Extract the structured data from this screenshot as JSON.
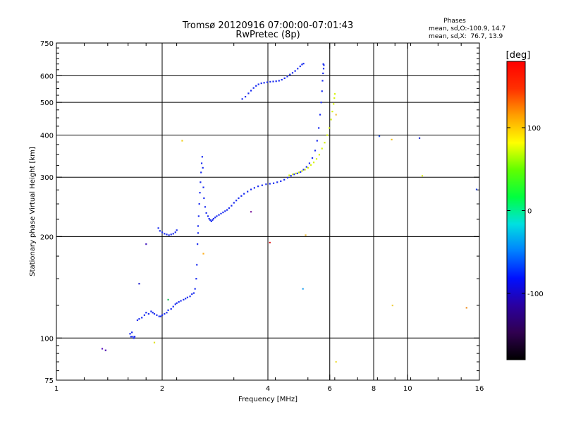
{
  "chart_data": {
    "type": "scatter",
    "title": "Tromsø 20120916 07:00:00-07:01:43",
    "subtitle": "RwPretec (8p)",
    "xlabel": "Frequency [MHz]",
    "ylabel": "Stationary phase Virtual Height [km]",
    "x_scale": "log",
    "y_scale": "log",
    "xlim": [
      1,
      16
    ],
    "ylim": [
      75,
      750
    ],
    "x_ticks": [
      1,
      2,
      4,
      6,
      8,
      10,
      16
    ],
    "x_tick_labels": [
      "1",
      "2",
      "4",
      "6",
      "8",
      "10",
      "16"
    ],
    "y_ticks": [
      75,
      100,
      200,
      300,
      400,
      500,
      600,
      750
    ],
    "y_tick_labels": [
      "75",
      "100",
      "200",
      "300",
      "400",
      "500",
      "600",
      "750"
    ],
    "grid": true,
    "phase_stats": {
      "heading": "Phases",
      "o_line": "mean, sd,O:-100.9, 14.7",
      "x_line": "mean, sd,X:  76.7, 13.9"
    },
    "colorbar": {
      "label": "[deg]",
      "range": [
        -180,
        180
      ],
      "ticks": [
        100,
        0,
        -100
      ],
      "tick_labels": [
        "100",
        "0",
        "-100"
      ],
      "colormap": [
        "#000000",
        "#300050",
        "#2a00a0",
        "#0010ff",
        "#0080ff",
        "#00e0e0",
        "#00ff40",
        "#60ff00",
        "#ffff00",
        "#ffa000",
        "#ff3000",
        "#ff0000"
      ]
    },
    "series": [
      {
        "mode": "O",
        "phase": -100,
        "color": "#1a2cf0",
        "points": [
          [
            1.62,
            103
          ],
          [
            1.63,
            101
          ],
          [
            1.65,
            101
          ],
          [
            1.66,
            100
          ],
          [
            1.67,
            101
          ],
          [
            1.64,
            104
          ],
          [
            1.7,
            113
          ],
          [
            1.72,
            114
          ],
          [
            1.75,
            115
          ],
          [
            1.78,
            117
          ],
          [
            1.8,
            119
          ],
          [
            1.83,
            118
          ],
          [
            1.86,
            120
          ],
          [
            1.88,
            119
          ],
          [
            1.9,
            118
          ],
          [
            1.93,
            117
          ],
          [
            1.96,
            116
          ],
          [
            1.98,
            116
          ],
          [
            2.0,
            117
          ],
          [
            2.03,
            118
          ],
          [
            2.06,
            119
          ],
          [
            2.08,
            121
          ],
          [
            2.12,
            122
          ],
          [
            2.15,
            124
          ],
          [
            2.18,
            126
          ],
          [
            2.2,
            127
          ],
          [
            2.23,
            128
          ],
          [
            2.26,
            129
          ],
          [
            2.3,
            130
          ],
          [
            2.33,
            131
          ],
          [
            2.36,
            132
          ],
          [
            2.4,
            133
          ],
          [
            2.43,
            135
          ],
          [
            2.46,
            136
          ],
          [
            2.48,
            140
          ],
          [
            2.5,
            150
          ],
          [
            2.51,
            165
          ],
          [
            2.52,
            190
          ],
          [
            2.53,
            205
          ],
          [
            1.95,
            212
          ],
          [
            1.97,
            208
          ],
          [
            2.0,
            206
          ],
          [
            2.03,
            204
          ],
          [
            2.06,
            203
          ],
          [
            2.09,
            202
          ],
          [
            2.12,
            203
          ],
          [
            2.15,
            204
          ],
          [
            2.18,
            206
          ],
          [
            2.2,
            209
          ],
          [
            2.53,
            215
          ],
          [
            2.54,
            230
          ],
          [
            2.55,
            250
          ],
          [
            2.56,
            270
          ],
          [
            2.57,
            290
          ],
          [
            2.58,
            310
          ],
          [
            2.59,
            330
          ],
          [
            2.6,
            345
          ],
          [
            2.61,
            320
          ],
          [
            2.62,
            280
          ],
          [
            2.63,
            260
          ],
          [
            2.65,
            245
          ],
          [
            2.67,
            235
          ],
          [
            2.7,
            230
          ],
          [
            2.72,
            226
          ],
          [
            2.74,
            224
          ],
          [
            2.76,
            222
          ],
          [
            2.78,
            224
          ],
          [
            2.8,
            226
          ],
          [
            2.83,
            228
          ],
          [
            2.86,
            230
          ],
          [
            2.9,
            232
          ],
          [
            2.94,
            234
          ],
          [
            2.98,
            236
          ],
          [
            3.02,
            238
          ],
          [
            3.06,
            240
          ],
          [
            3.1,
            243
          ],
          [
            3.15,
            247
          ],
          [
            3.2,
            252
          ],
          [
            3.25,
            256
          ],
          [
            3.3,
            260
          ],
          [
            3.36,
            264
          ],
          [
            3.42,
            268
          ],
          [
            3.5,
            272
          ],
          [
            3.58,
            276
          ],
          [
            3.66,
            279
          ],
          [
            3.75,
            282
          ],
          [
            3.85,
            284
          ],
          [
            3.95,
            286
          ],
          [
            4.05,
            287
          ],
          [
            4.15,
            288
          ],
          [
            4.25,
            290
          ],
          [
            4.35,
            292
          ],
          [
            4.45,
            295
          ],
          [
            4.55,
            299
          ],
          [
            4.65,
            303
          ],
          [
            4.75,
            306
          ],
          [
            4.85,
            308
          ],
          [
            4.95,
            311
          ],
          [
            5.05,
            316
          ],
          [
            5.15,
            322
          ],
          [
            5.25,
            330
          ],
          [
            5.35,
            342
          ],
          [
            5.45,
            360
          ],
          [
            5.52,
            385
          ],
          [
            5.58,
            420
          ],
          [
            5.63,
            460
          ],
          [
            5.67,
            500
          ],
          [
            5.7,
            540
          ],
          [
            5.72,
            580
          ],
          [
            5.74,
            610
          ],
          [
            5.76,
            630
          ],
          [
            5.77,
            645
          ],
          [
            5.75,
            650
          ],
          [
            3.38,
            512
          ],
          [
            3.45,
            520
          ],
          [
            3.52,
            532
          ],
          [
            3.58,
            542
          ],
          [
            3.64,
            552
          ],
          [
            3.7,
            560
          ],
          [
            3.76,
            566
          ],
          [
            3.83,
            570
          ],
          [
            3.9,
            572
          ],
          [
            3.98,
            574
          ],
          [
            4.06,
            576
          ],
          [
            4.14,
            577
          ],
          [
            4.22,
            578
          ],
          [
            4.3,
            580
          ],
          [
            4.38,
            584
          ],
          [
            4.46,
            590
          ],
          [
            4.54,
            597
          ],
          [
            4.62,
            605
          ],
          [
            4.7,
            612
          ],
          [
            4.78,
            620
          ],
          [
            4.86,
            630
          ],
          [
            4.94,
            640
          ],
          [
            5.0,
            648
          ],
          [
            5.05,
            652
          ]
        ]
      },
      {
        "mode": "X",
        "phase": 100,
        "color": "#d6f20a",
        "points": [
          [
            4.6,
            304
          ],
          [
            4.7,
            306
          ],
          [
            4.8,
            308
          ],
          [
            4.9,
            310
          ],
          [
            5.0,
            313
          ],
          [
            5.1,
            316
          ],
          [
            5.2,
            320
          ],
          [
            5.3,
            326
          ],
          [
            5.4,
            332
          ],
          [
            5.5,
            340
          ],
          [
            5.6,
            350
          ],
          [
            5.7,
            365
          ],
          [
            5.8,
            380
          ],
          [
            5.9,
            400
          ],
          [
            5.98,
            420
          ],
          [
            6.05,
            445
          ],
          [
            6.1,
            470
          ],
          [
            6.15,
            495
          ],
          [
            6.18,
            515
          ],
          [
            6.2,
            530
          ]
        ]
      },
      {
        "mode": "scattered",
        "points": [
          [
            1.35,
            93,
            "#5a10c0"
          ],
          [
            1.38,
            92,
            "#4a10b0"
          ],
          [
            1.8,
            190,
            "#4a20c0"
          ],
          [
            1.72,
            145,
            "#2020d0"
          ],
          [
            1.9,
            97,
            "#e0e020"
          ],
          [
            2.08,
            130,
            "#20c060"
          ],
          [
            2.28,
            385,
            "#f0d020"
          ],
          [
            2.62,
            178,
            "#ffb020"
          ],
          [
            3.58,
            237,
            "#8020a0"
          ],
          [
            4.05,
            192,
            "#e02020"
          ],
          [
            5.03,
            140,
            "#20a0f0"
          ],
          [
            5.12,
            202,
            "#f0c040"
          ],
          [
            6.25,
            85,
            "#f0e040"
          ],
          [
            8.3,
            397,
            "#3060f0"
          ],
          [
            9.0,
            388,
            "#f0c020"
          ],
          [
            9.05,
            125,
            "#f0d040"
          ],
          [
            10.8,
            392,
            "#2030d0"
          ],
          [
            11.0,
            303,
            "#e0f020"
          ],
          [
            14.7,
            123,
            "#f09020"
          ],
          [
            15.7,
            276,
            "#2040e0"
          ],
          [
            6.25,
            460,
            "#f0c040"
          ]
        ]
      }
    ]
  }
}
